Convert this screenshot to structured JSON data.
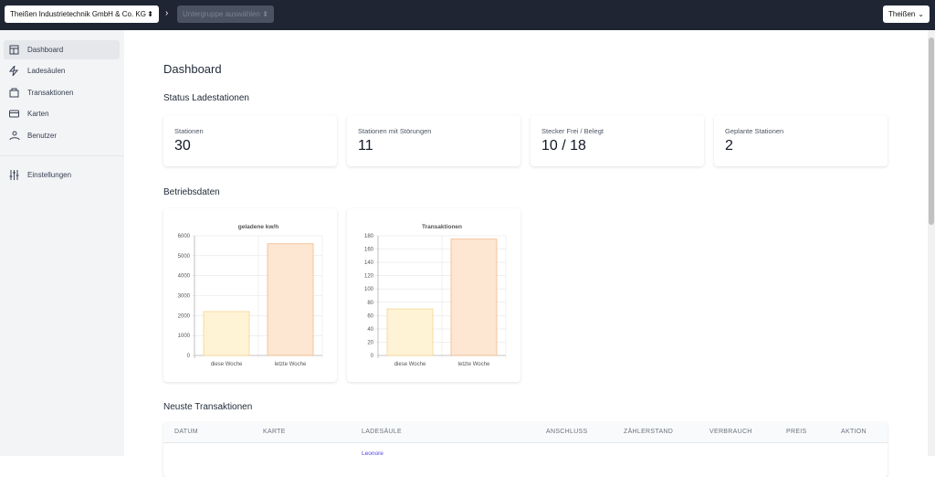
{
  "topbar": {
    "company": "Theißen Industrietechnik GmbH & Co. KG",
    "subgroup": "Untergruppe auswählen",
    "user": "Theißen"
  },
  "sidebar": {
    "items": [
      "Dashboard",
      "Ladesäulen",
      "Transaktionen",
      "Karten",
      "Benutzer"
    ],
    "settings": "Einstellungen"
  },
  "page_title": "Dashboard",
  "status": {
    "heading": "Status Ladestationen",
    "cards": [
      {
        "label": "Stationen",
        "value": "30"
      },
      {
        "label": "Stationen mit Störungen",
        "value": "11"
      },
      {
        "label": "Stecker Frei / Belegt",
        "value": "10 / 18"
      },
      {
        "label": "Geplante Stationen",
        "value": "2"
      }
    ]
  },
  "operations": {
    "heading": "Betriebsdaten"
  },
  "charts": [
    {
      "type": "bar",
      "title": "geladene kw/h",
      "categories": [
        "diese Woche",
        "letzte Woche"
      ],
      "values": [
        2200,
        5600
      ],
      "colors": [
        "#fff3d6",
        "#fde6d2"
      ],
      "edge_colors": [
        "#f2d58e",
        "#f3b98a"
      ],
      "ylim": [
        0,
        6000
      ],
      "yticks": [
        0,
        1000,
        2000,
        3000,
        4000,
        5000,
        6000
      ],
      "grid": true
    },
    {
      "type": "bar",
      "title": "Transaktionen",
      "categories": [
        "diese Woche",
        "letzte Woche"
      ],
      "values": [
        70,
        175
      ],
      "colors": [
        "#fff3d6",
        "#fde6d2"
      ],
      "edge_colors": [
        "#f2d58e",
        "#f3b98a"
      ],
      "ylim": [
        0,
        180
      ],
      "yticks": [
        0,
        20,
        40,
        60,
        80,
        100,
        120,
        140,
        160,
        180
      ],
      "grid": true
    }
  ],
  "transactions": {
    "heading": "Neuste Transaktionen",
    "columns": [
      "DATUM",
      "KARTE",
      "LADESÄULE",
      "ANSCHLUSS",
      "ZÄHLERSTAND",
      "VERBRAUCH",
      "PREIS",
      "AKTION"
    ],
    "rows": [
      {
        "ladesaeule": "Leonore"
      }
    ]
  }
}
